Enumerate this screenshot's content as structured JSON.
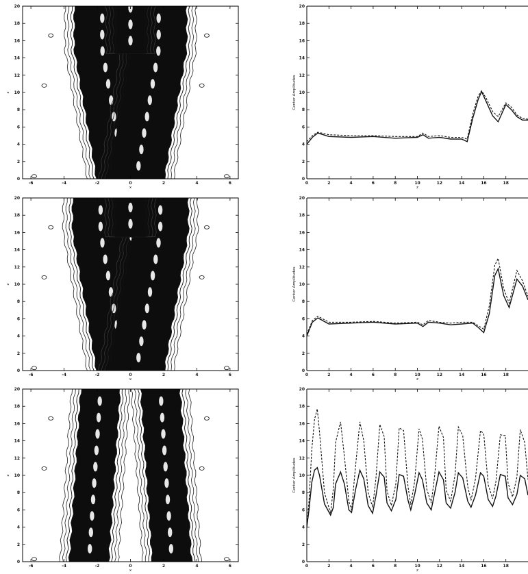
{
  "figure": {
    "contour_panels": [
      {
        "xlabel": "x",
        "ylabel": "z",
        "xticks": [
          "-6",
          "-4",
          "-2",
          "0",
          "2",
          "4",
          "6"
        ],
        "yticks": [
          "0",
          "2",
          "4",
          "6",
          "8",
          "10",
          "12",
          "14",
          "16",
          "18",
          "20"
        ],
        "xlim": [
          -6.5,
          6.5
        ],
        "ylim": [
          0,
          20
        ],
        "branches": [
          {
            "center": [
              [
                0,
                -0.35
              ],
              [
                15,
                -1.7
              ],
              [
                20,
                -1.7
              ]
            ],
            "halfwidth": 1.3
          },
          {
            "center": [
              [
                0,
                0.35
              ],
              [
                15,
                1.7
              ],
              [
                20,
                1.7
              ]
            ],
            "halfwidth": 1.3
          },
          {
            "center": [
              [
                14.5,
                0
              ],
              [
                20,
                0
              ]
            ],
            "halfwidth": 0.5
          }
        ],
        "apex": 15.5
      },
      {
        "xlabel": "x",
        "ylabel": "z",
        "xticks": [
          "-6",
          "-4",
          "-2",
          "0",
          "2",
          "4",
          "6"
        ],
        "yticks": [
          "0",
          "2",
          "4",
          "6",
          "8",
          "10",
          "12",
          "14",
          "16",
          "18",
          "20"
        ],
        "xlim": [
          -6.5,
          6.5
        ],
        "ylim": [
          0,
          20
        ],
        "branches": [
          {
            "center": [
              [
                0,
                -0.35
              ],
              [
                16,
                -1.8
              ],
              [
                20,
                -1.8
              ]
            ],
            "halfwidth": 1.3
          },
          {
            "center": [
              [
                0,
                0.35
              ],
              [
                16,
                1.8
              ],
              [
                20,
                1.8
              ]
            ],
            "halfwidth": 1.3
          },
          {
            "center": [
              [
                15.5,
                0
              ],
              [
                20,
                0
              ]
            ],
            "halfwidth": 0.55
          }
        ],
        "apex": 16.5
      },
      {
        "xlabel": "x",
        "ylabel": "z",
        "xticks": [
          "-6",
          "-4",
          "-2",
          "0",
          "2",
          "4",
          "6"
        ],
        "yticks": [
          "0",
          "2",
          "4",
          "6",
          "8",
          "10",
          "12",
          "14",
          "16",
          "18",
          "20"
        ],
        "xlim": [
          -6.5,
          6.5
        ],
        "ylim": [
          0,
          20
        ],
        "branches": [
          {
            "center": [
              [
                0,
                -2.5
              ],
              [
                20,
                -1.8
              ]
            ],
            "halfwidth": 0.8
          },
          {
            "center": [
              [
                0,
                2.5
              ],
              [
                20,
                1.8
              ]
            ],
            "halfwidth": 0.8
          }
        ],
        "apex": null
      }
    ]
  },
  "chart_data": [
    {
      "type": "line",
      "xlabel": "z",
      "ylabel": "Center Amplitudes",
      "xlim": [
        0,
        20
      ],
      "ylim": [
        0,
        20
      ],
      "xticks": [
        "0",
        "2",
        "4",
        "6",
        "8",
        "10",
        "12",
        "14",
        "16",
        "18"
      ],
      "yticks": [
        "0",
        "2",
        "4",
        "6",
        "8",
        "10",
        "12",
        "14",
        "16",
        "18",
        "20"
      ],
      "series": [
        {
          "style": "solid",
          "x": [
            0,
            0.5,
            1,
            2,
            4,
            6,
            8,
            10,
            10.5,
            11,
            12,
            13,
            14,
            14.5,
            15,
            15.5,
            15.8,
            16.2,
            16.8,
            17.3,
            18,
            18.5,
            19,
            19.5,
            20
          ],
          "y": [
            4.0,
            4.8,
            5.3,
            4.9,
            4.8,
            4.9,
            4.7,
            4.8,
            5.1,
            4.7,
            4.8,
            4.6,
            4.6,
            4.3,
            7.0,
            9.2,
            10.1,
            9.0,
            7.3,
            6.6,
            8.6,
            8.0,
            7.2,
            6.8,
            6.8
          ]
        },
        {
          "style": "dashed",
          "x": [
            0,
            0.5,
            1,
            2,
            4,
            6,
            8,
            10,
            10.5,
            11,
            12,
            13,
            14,
            14.5,
            15,
            15.5,
            15.8,
            16.2,
            16.8,
            17.3,
            18,
            18.5,
            19,
            19.5,
            20
          ],
          "y": [
            4.3,
            5.0,
            5.4,
            5.1,
            5.0,
            5.0,
            4.9,
            4.9,
            5.3,
            4.9,
            5.0,
            4.8,
            4.8,
            4.6,
            7.5,
            9.6,
            10.2,
            9.4,
            7.8,
            7.2,
            8.8,
            8.3,
            7.4,
            7.0,
            6.9
          ]
        }
      ]
    },
    {
      "type": "line",
      "xlabel": "z",
      "ylabel": "Center Amplitudes",
      "xlim": [
        0,
        20
      ],
      "ylim": [
        0,
        20
      ],
      "xticks": [
        "0",
        "2",
        "4",
        "6",
        "8",
        "10",
        "12",
        "14",
        "16",
        "18"
      ],
      "yticks": [
        "0",
        "2",
        "4",
        "6",
        "8",
        "10",
        "12",
        "14",
        "16",
        "18",
        "20"
      ],
      "series": [
        {
          "style": "solid",
          "x": [
            0,
            0.5,
            1,
            2,
            4,
            6,
            8,
            10,
            10.5,
            11,
            12,
            13,
            14,
            15,
            15.5,
            16,
            16.5,
            17,
            17.3,
            17.8,
            18.3,
            19,
            19.5,
            20
          ],
          "y": [
            4.0,
            5.6,
            6.1,
            5.4,
            5.5,
            5.6,
            5.4,
            5.5,
            5.1,
            5.6,
            5.5,
            5.3,
            5.4,
            5.5,
            5.0,
            4.4,
            6.6,
            11.0,
            11.8,
            8.7,
            7.3,
            10.6,
            9.8,
            8.2
          ]
        },
        {
          "style": "dashed",
          "x": [
            0,
            0.5,
            1,
            2,
            4,
            6,
            8,
            10,
            10.5,
            11,
            12,
            13,
            14,
            15,
            15.5,
            16,
            16.5,
            17,
            17.3,
            17.8,
            18.3,
            19,
            19.5,
            20
          ],
          "y": [
            4.2,
            5.8,
            6.3,
            5.6,
            5.6,
            5.7,
            5.5,
            5.6,
            5.3,
            5.8,
            5.6,
            5.5,
            5.6,
            5.6,
            5.2,
            4.8,
            7.5,
            12.2,
            13.0,
            9.5,
            7.8,
            11.6,
            10.4,
            8.6
          ]
        }
      ]
    },
    {
      "type": "line",
      "xlabel": "z",
      "ylabel": "Center Amplitudes",
      "xlim": [
        0,
        20
      ],
      "ylim": [
        0,
        20
      ],
      "xticks": [
        "0",
        "2",
        "4",
        "6",
        "8",
        "10",
        "12",
        "14",
        "16",
        "18"
      ],
      "yticks": [
        "0",
        "2",
        "4",
        "6",
        "8",
        "10",
        "12",
        "14",
        "16",
        "18",
        "20"
      ],
      "series": [
        {
          "style": "solid",
          "x": [
            0,
            0.2,
            0.45,
            0.7,
            0.95,
            1.15,
            1.6,
            2.15,
            2.4,
            2.6,
            3.05,
            3.4,
            3.8,
            4.05,
            4.4,
            4.8,
            5.15,
            5.55,
            5.95,
            6.25,
            6.6,
            7.0,
            7.25,
            7.65,
            8.05,
            8.35,
            8.75,
            9.15,
            9.4,
            9.75,
            10.15,
            10.45,
            10.85,
            11.25,
            11.55,
            11.95,
            12.35,
            12.6,
            13.0,
            13.4,
            13.7,
            14.1,
            14.55,
            14.85,
            15.25,
            15.7,
            16.0,
            16.4,
            16.8,
            17.1,
            17.5,
            17.95,
            18.2,
            18.6,
            19.0,
            19.3,
            19.7,
            20.0
          ],
          "y": [
            4.0,
            6.0,
            9.2,
            10.6,
            10.9,
            10.0,
            6.7,
            5.4,
            6.3,
            9.0,
            10.4,
            9.0,
            6.0,
            5.7,
            8.3,
            10.6,
            9.6,
            6.5,
            5.6,
            7.6,
            10.4,
            9.8,
            6.8,
            5.9,
            7.2,
            10.1,
            9.9,
            7.1,
            6.0,
            7.8,
            10.3,
            9.5,
            6.8,
            6.0,
            7.9,
            10.4,
            9.5,
            6.8,
            6.2,
            8.0,
            10.3,
            9.7,
            7.0,
            6.3,
            7.7,
            10.3,
            9.9,
            7.2,
            6.4,
            7.6,
            10.1,
            9.9,
            7.4,
            6.6,
            7.8,
            10.0,
            9.6,
            7.7
          ]
        },
        {
          "style": "dashed",
          "x": [
            0,
            0.2,
            0.45,
            0.7,
            0.95,
            1.15,
            1.6,
            2.15,
            2.4,
            2.6,
            3.05,
            3.4,
            3.8,
            4.05,
            4.4,
            4.8,
            5.15,
            5.55,
            5.95,
            6.25,
            6.6,
            7.0,
            7.25,
            7.65,
            8.05,
            8.35,
            8.75,
            9.15,
            9.4,
            9.75,
            10.15,
            10.45,
            10.85,
            11.25,
            11.55,
            11.95,
            12.35,
            12.6,
            13.0,
            13.4,
            13.7,
            14.1,
            14.55,
            14.85,
            15.25,
            15.7,
            16.0,
            16.4,
            16.8,
            17.1,
            17.5,
            17.95,
            18.2,
            18.6,
            19.0,
            19.3,
            19.7,
            20.0
          ],
          "y": [
            4.0,
            7.0,
            13.0,
            16.5,
            17.7,
            15.0,
            8.0,
            5.6,
            8.5,
            13.8,
            16.2,
            12.2,
            7.0,
            6.0,
            11.0,
            16.2,
            14.0,
            8.0,
            6.3,
            9.6,
            15.9,
            14.5,
            8.2,
            6.5,
            9.0,
            15.5,
            15.2,
            8.7,
            6.6,
            9.3,
            15.4,
            14.2,
            8.4,
            6.8,
            9.8,
            15.7,
            14.4,
            8.3,
            7.0,
            10.0,
            15.6,
            14.6,
            8.7,
            7.1,
            9.6,
            15.2,
            14.8,
            8.9,
            7.3,
            9.3,
            14.7,
            14.6,
            9.1,
            7.5,
            9.8,
            15.3,
            13.8,
            9.5
          ]
        }
      ]
    }
  ]
}
